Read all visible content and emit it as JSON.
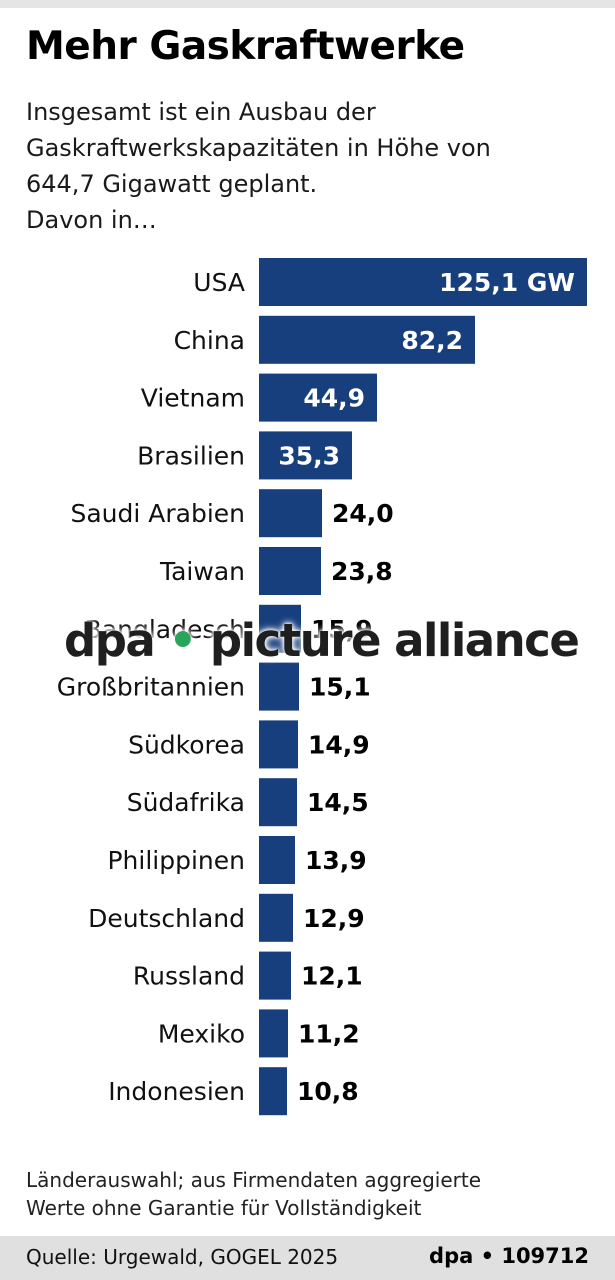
{
  "header": {
    "title": "Mehr Gaskraftwerke",
    "subtitle_lines": [
      "Insgesamt ist ein Ausbau der",
      "Gaskraftwerkskapazitäten in Höhe von",
      "644,7 Gigawatt geplant.",
      "Davon in…"
    ]
  },
  "watermark": {
    "left": "dpa",
    "dot": "•",
    "right": "picture alliance"
  },
  "chart_data": {
    "type": "bar",
    "orientation": "horizontal",
    "unit": "GW",
    "bar_color": "#173e7d",
    "categories": [
      "USA",
      "China",
      "Vietnam",
      "Brasilien",
      "Saudi Arabien",
      "Taiwan",
      "Bangladesch",
      "Großbritannien",
      "Südkorea",
      "Südafrika",
      "Philippinen",
      "Deutschland",
      "Russland",
      "Mexiko",
      "Indonesien"
    ],
    "values": [
      125.1,
      82.2,
      44.9,
      35.3,
      24.0,
      23.8,
      15.9,
      15.1,
      14.9,
      14.5,
      13.9,
      12.9,
      12.1,
      11.2,
      10.8
    ],
    "value_labels": [
      "125,1 GW",
      "82,2",
      "44,9",
      "35,3",
      "24,0",
      "23,8",
      "15,9",
      "15,1",
      "14,9",
      "14,5",
      "13,9",
      "12,9",
      "12,1",
      "11,2",
      "10,8"
    ],
    "xlim": [
      0,
      125.1
    ]
  },
  "footer": {
    "note_lines": [
      "Länderauswahl; aus Firmendaten aggregierte",
      "Werte ohne Garantie für Vollständigkeit"
    ],
    "source": "Quelle: Urgewald, GOGEL 2025",
    "credit": "dpa • 109712"
  }
}
